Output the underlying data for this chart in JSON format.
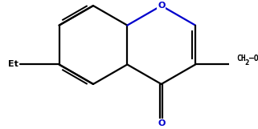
{
  "background": "#ffffff",
  "bond_color": "#000000",
  "oxygen_color": "#0000cc",
  "linewidth": 1.6,
  "figsize": [
    3.21,
    1.61
  ],
  "dpi": 100,
  "xlim": [
    -3.8,
    3.5
  ],
  "ylim": [
    -2.2,
    2.2
  ]
}
